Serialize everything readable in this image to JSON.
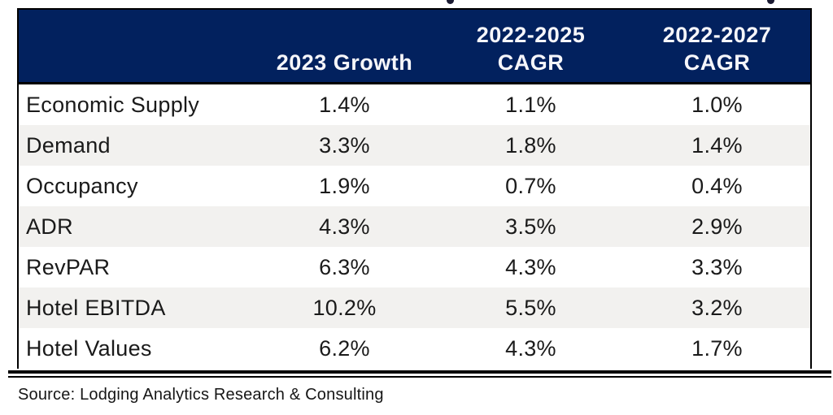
{
  "page": {
    "background": "#ffffff"
  },
  "chart_data": {
    "type": "table",
    "title": "",
    "columns": [
      "",
      "2023 Growth",
      "2022-2025 CAGR",
      "2022-2027 CAGR"
    ],
    "rows": [
      [
        "Economic Supply",
        "1.4%",
        "1.1%",
        "1.0%"
      ],
      [
        "Demand",
        "3.3%",
        "1.8%",
        "1.4%"
      ],
      [
        "Occupancy",
        "1.9%",
        "0.7%",
        "0.4%"
      ],
      [
        "ADR",
        "4.3%",
        "3.5%",
        "2.9%"
      ],
      [
        "RevPAR",
        "6.3%",
        "4.3%",
        "3.3%"
      ],
      [
        "Hotel EBITDA",
        "10.2%",
        "5.5%",
        "3.2%"
      ],
      [
        "Hotel Values",
        "6.2%",
        "4.3%",
        "1.7%"
      ]
    ],
    "source": "Source: Lodging Analytics Research & Consulting",
    "header_bg": "#02215E",
    "header_text_color": "#F6F6FA",
    "row_alt_bg": "#F2F1EF"
  },
  "table": {
    "header": {
      "growth": "2023 Growth",
      "cagr_2025": {
        "line1": "2022-2025",
        "line2": "CAGR"
      },
      "cagr_2027": {
        "line1": "2022-2027",
        "line2": "CAGR"
      }
    },
    "rows": [
      {
        "label": "Economic Supply",
        "growth": "1.4%",
        "cagr25": "1.1%",
        "cagr27": "1.0%"
      },
      {
        "label": "Demand",
        "growth": "3.3%",
        "cagr25": "1.8%",
        "cagr27": "1.4%"
      },
      {
        "label": "Occupancy",
        "growth": "1.9%",
        "cagr25": "0.7%",
        "cagr27": "0.4%"
      },
      {
        "label": "ADR",
        "growth": "4.3%",
        "cagr25": "3.5%",
        "cagr27": "2.9%"
      },
      {
        "label": "RevPAR",
        "growth": "6.3%",
        "cagr25": "4.3%",
        "cagr27": "3.3%"
      },
      {
        "label": "Hotel EBITDA",
        "growth": "10.2%",
        "cagr25": "5.5%",
        "cagr27": "3.2%"
      },
      {
        "label": "Hotel Values",
        "growth": "6.2%",
        "cagr25": "4.3%",
        "cagr27": "1.7%"
      }
    ]
  },
  "footer": {
    "source_text": "Source: Lodging Analytics Research & Consulting"
  }
}
